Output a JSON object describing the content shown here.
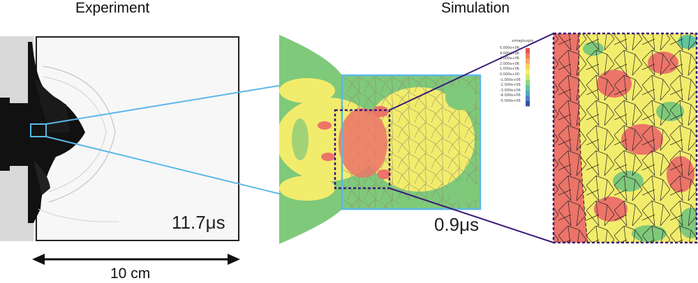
{
  "headings": {
    "experiment": "Experiment",
    "simulation": "Simulation"
  },
  "experiment_panel": {
    "time_label": "11.7μs",
    "scale_label": "10 cm"
  },
  "simulation_panel": {
    "time_label": "0.9μs"
  },
  "legend": {
    "title": "ximagtuxpts",
    "entries": [
      "5.000e+06",
      "4.000e+06",
      "3.000e+06",
      "2.000e+06",
      "1.000e+06",
      "0.000e+00",
      "-1.000e+06",
      "-2.000e+06",
      "-3.000e+06",
      "-4.000e+06",
      "-5.000e+06"
    ],
    "colors": [
      "#e8534a",
      "#ee7f5a",
      "#f3a95e",
      "#f6d160",
      "#f1f06e",
      "#c9e77a",
      "#8fd57e",
      "#62c49c",
      "#4fa9c6",
      "#4d7fc4",
      "#3b4fa7"
    ]
  },
  "colors": {
    "callout_blue": "#5bb8e8",
    "callout_purple": "#3a1a78",
    "sim_green": "#7fc97a",
    "sim_yellow": "#f2ec6c",
    "sim_red": "#ec7468"
  }
}
